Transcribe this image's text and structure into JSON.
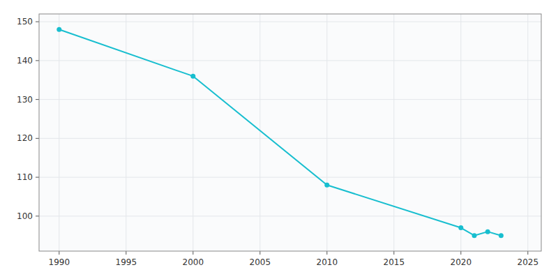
{
  "chart_data": {
    "type": "line",
    "x": [
      1990,
      2000,
      2010,
      2020,
      2021,
      2022,
      2023
    ],
    "values": [
      148,
      136,
      108,
      97,
      95,
      96,
      95
    ],
    "color": "#17becf",
    "marker": "circle",
    "xlim": [
      1988.5,
      2026
    ],
    "ylim": [
      91,
      152
    ],
    "xticks": [
      1990,
      1995,
      2000,
      2005,
      2010,
      2015,
      2020,
      2025
    ],
    "yticks": [
      100,
      110,
      120,
      130,
      140,
      150
    ],
    "grid": true
  }
}
